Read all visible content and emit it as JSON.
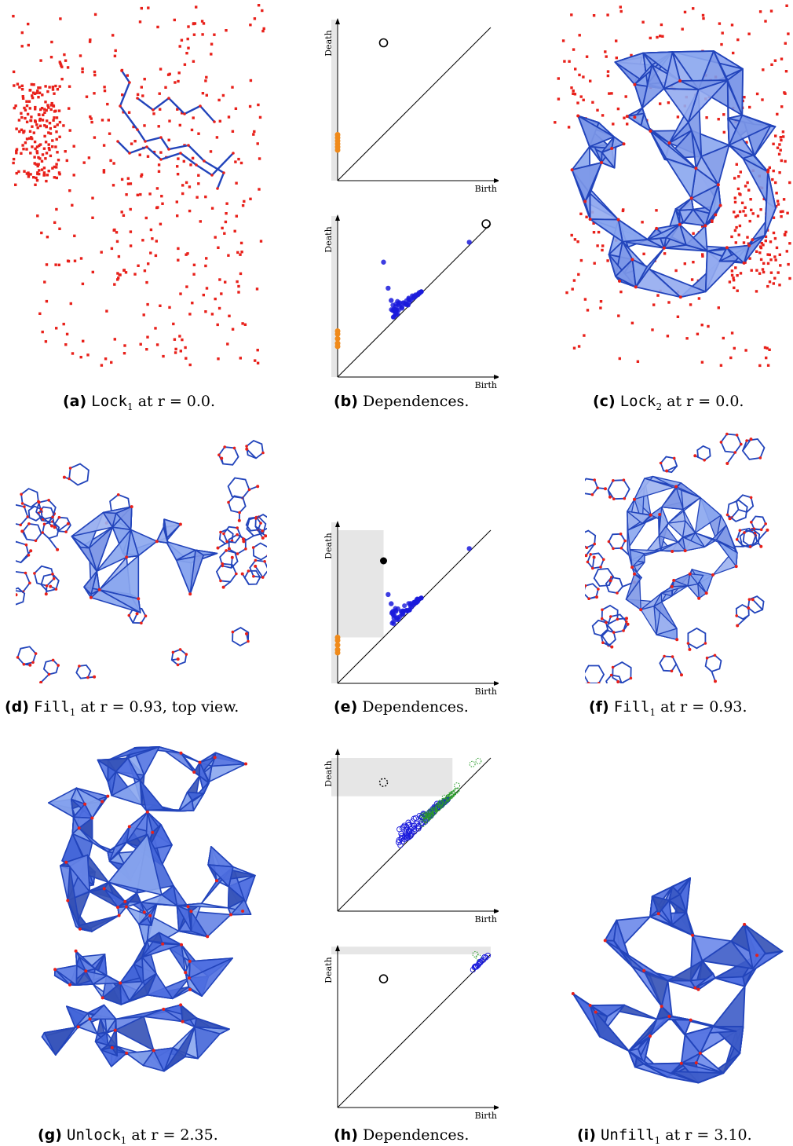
{
  "figure": {
    "panels": [
      {
        "id": "a",
        "label": "(a)",
        "name": "Lock",
        "sub": "1",
        "suffix": " at r = 0.0."
      },
      {
        "id": "b",
        "label": "(b)",
        "text": " Dependences."
      },
      {
        "id": "c",
        "label": "(c)",
        "name": "Lock",
        "sub": "2",
        "suffix": " at r = 0.0."
      },
      {
        "id": "d",
        "label": "(d)",
        "name": "Fill",
        "sub": "1",
        "suffix": " at r = 0.93, top view."
      },
      {
        "id": "e",
        "label": "(e)",
        "text": " Dependences."
      },
      {
        "id": "f",
        "label": "(f)",
        "name": "Fill",
        "sub": "1",
        "suffix": " at r = 0.93."
      },
      {
        "id": "g",
        "label": "(g)",
        "name": "Unlock",
        "sub": "1",
        "suffix": " at r = 2.35."
      },
      {
        "id": "h",
        "label": "(h)",
        "text": " Dependences."
      },
      {
        "id": "i",
        "label": "(i)",
        "name": "Unfill",
        "sub": "1",
        "suffix": " at r = 3.10."
      }
    ],
    "axis_x_label": "Birth",
    "axis_y_label": "Death",
    "colors": {
      "points_red": "#e8201a",
      "edges_blue": "#2244bb",
      "fill_light": "#8aa6ee",
      "fill_mid": "#4f6fe0",
      "fill_dark": "#3451b6",
      "orange": "#f08a1a",
      "dgm_blue": "#1a1adc",
      "dgm_blue_light": "#7a7aee",
      "dgm_green": "#2a9a2a",
      "shade": "#e6e6e6"
    }
  },
  "chart_data": [
    {
      "type": "scatter",
      "panel": "b-top",
      "xlabel": "Birth",
      "ylabel": "Death",
      "series": [
        {
          "name": "",
          "values": [
            [
              0.0,
              0.2
            ],
            [
              0.0,
              0.22
            ],
            [
              0.0,
              0.24
            ],
            [
              0.0,
              0.26
            ],
            [
              0.0,
              0.28
            ],
            [
              0.0,
              0.3
            ]
          ],
          "marker": "orange"
        },
        {
          "name": "",
          "values": [
            [
              0.3,
              0.9
            ]
          ],
          "marker": "open-circle"
        }
      ]
    },
    {
      "type": "scatter",
      "panel": "b-bottom",
      "xlabel": "Birth",
      "ylabel": "Death",
      "series": [
        {
          "name": "",
          "values": [
            [
              0.0,
              0.2
            ],
            [
              0.0,
              0.22
            ],
            [
              0.0,
              0.25
            ],
            [
              0.0,
              0.28
            ],
            [
              0.0,
              0.3
            ]
          ],
          "marker": "orange"
        },
        {
          "name": "",
          "values": [
            [
              0.3,
              0.75
            ],
            [
              0.33,
              0.58
            ],
            [
              0.35,
              0.5
            ],
            [
              0.38,
              0.46
            ],
            [
              0.42,
              0.45
            ],
            [
              0.46,
              0.47
            ],
            [
              0.5,
              0.52
            ],
            [
              0.86,
              0.88
            ]
          ],
          "marker": "blue"
        },
        {
          "name": "",
          "values": [
            [
              0.97,
              1.0
            ]
          ],
          "marker": "open-circle"
        }
      ]
    },
    {
      "type": "scatter",
      "panel": "e",
      "xlabel": "Birth",
      "ylabel": "Death",
      "series": [
        {
          "name": "",
          "values": [
            [
              0.0,
              0.2
            ],
            [
              0.0,
              0.22
            ],
            [
              0.0,
              0.25
            ],
            [
              0.0,
              0.28
            ],
            [
              0.0,
              0.3
            ]
          ],
          "marker": "orange"
        },
        {
          "name": "",
          "values": [
            [
              0.3,
              0.8
            ]
          ],
          "marker": "filled-black"
        },
        {
          "name": "",
          "values": [
            [
              0.33,
              0.58
            ],
            [
              0.35,
              0.52
            ],
            [
              0.38,
              0.47
            ],
            [
              0.42,
              0.45
            ],
            [
              0.47,
              0.48
            ],
            [
              0.52,
              0.55
            ],
            [
              0.86,
              0.88
            ]
          ],
          "marker": "blue"
        }
      ]
    },
    {
      "type": "scatter",
      "panel": "h-top",
      "xlabel": "Birth",
      "ylabel": "Death",
      "series": [
        {
          "name": "",
          "values": [
            [
              0.3,
              0.84
            ]
          ],
          "marker": "dashed-open-circle"
        },
        {
          "name": "",
          "values": [
            [
              0.4,
              0.45
            ],
            [
              0.45,
              0.5
            ],
            [
              0.5,
              0.52
            ],
            [
              0.55,
              0.58
            ],
            [
              0.6,
              0.64
            ],
            [
              0.65,
              0.7
            ]
          ],
          "marker": "blue-open"
        },
        {
          "name": "",
          "values": [
            [
              0.62,
              0.66
            ],
            [
              0.7,
              0.74
            ],
            [
              0.78,
              0.82
            ],
            [
              0.88,
              0.96
            ],
            [
              0.92,
              0.98
            ]
          ],
          "marker": "green-open"
        }
      ]
    },
    {
      "type": "scatter",
      "panel": "h-bottom",
      "xlabel": "Birth",
      "ylabel": "Death",
      "series": [
        {
          "name": "",
          "values": [
            [
              0.3,
              0.84
            ]
          ],
          "marker": "open-circle"
        },
        {
          "name": "",
          "values": [
            [
              0.9,
              0.92
            ],
            [
              0.93,
              0.95
            ],
            [
              0.96,
              0.98
            ]
          ],
          "marker": "blue-open"
        },
        {
          "name": "",
          "values": [
            [
              0.9,
              1.0
            ],
            [
              0.92,
              0.98
            ]
          ],
          "marker": "green-open"
        }
      ]
    }
  ]
}
